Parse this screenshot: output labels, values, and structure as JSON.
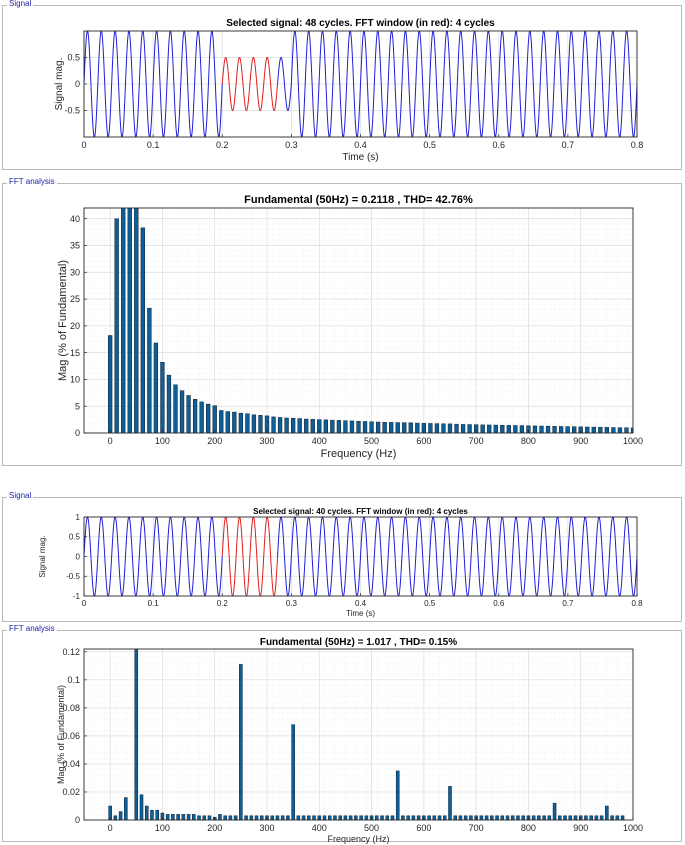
{
  "panels": [
    {
      "label": "Signal"
    },
    {
      "label": "FFT analysis"
    },
    {
      "label": "Signal"
    },
    {
      "label": "FFT analysis"
    }
  ],
  "colors": {
    "signal": "#1f1fd8",
    "window": "#e01f1f",
    "bar": "#0f5e96",
    "bar_edge": "#0a2035",
    "grid": "#dcdcdc"
  },
  "chart_data": [
    {
      "type": "line",
      "title": "Selected signal: 48 cycles. FFT window (in red): 4 cycles",
      "xlabel": "Time (s)",
      "ylabel": "Signal mag.",
      "xlim": [
        0,
        0.8
      ],
      "ylim": [
        -1,
        1
      ],
      "xticks": [
        0,
        0.1,
        0.2,
        0.3,
        0.4,
        0.5,
        0.6,
        0.7,
        0.8
      ],
      "xtick_labels": [
        "0",
        "0.1",
        "0.2",
        "0.3",
        "0.4",
        "0.5",
        "0.6",
        "0.7",
        "0.8"
      ],
      "yticks": [
        -0.5,
        0,
        0.5
      ],
      "ytick_labels": [
        "-0.5",
        "0",
        "0.5"
      ],
      "frequency_hz": 50,
      "segments": [
        {
          "t0": 0,
          "t1": 0.2,
          "amplitude": 1.0,
          "highlight": false
        },
        {
          "t0": 0.2,
          "t1": 0.28,
          "amplitude": 0.5,
          "highlight": true
        },
        {
          "t0": 0.28,
          "t1": 0.3,
          "amplitude": 0.5,
          "highlight": false
        },
        {
          "t0": 0.3,
          "t1": 0.8,
          "amplitude": 1.0,
          "highlight": false
        }
      ]
    },
    {
      "type": "bar",
      "title": "Fundamental (50Hz) = 0.2118 , THD= 42.76%",
      "xlabel": "Frequency (Hz)",
      "ylabel": "Mag (% of Fundamental)",
      "xlim": [
        -50,
        1000
      ],
      "ylim": [
        0,
        42
      ],
      "xticks": [
        0,
        100,
        200,
        300,
        400,
        500,
        600,
        700,
        800,
        900,
        1000
      ],
      "xtick_labels": [
        "0",
        "100",
        "200",
        "300",
        "400",
        "500",
        "600",
        "700",
        "800",
        "900",
        "1000"
      ],
      "yticks": [
        0,
        5,
        10,
        15,
        20,
        25,
        30,
        35,
        40
      ],
      "ytick_labels": [
        "0",
        "5",
        "10",
        "15",
        "20",
        "25",
        "30",
        "35",
        "40"
      ],
      "x_start": 0,
      "x_step": 12.5,
      "values": [
        18.2,
        40.0,
        42,
        42,
        42,
        38.3,
        23.3,
        16.8,
        13.2,
        10.8,
        9.0,
        7.9,
        7.0,
        6.3,
        5.8,
        5.4,
        5.1,
        4.2,
        4.0,
        3.9,
        3.7,
        3.6,
        3.4,
        3.3,
        3.2,
        3.0,
        2.9,
        2.8,
        2.75,
        2.7,
        2.6,
        2.55,
        2.5,
        2.45,
        2.4,
        2.35,
        2.3,
        2.25,
        2.2,
        2.15,
        2.1,
        2.05,
        2.0,
        1.98,
        1.95,
        1.92,
        1.9,
        1.85,
        1.8,
        1.78,
        1.75,
        1.72,
        1.7,
        1.65,
        1.6,
        1.58,
        1.55,
        1.52,
        1.5,
        1.48,
        1.45,
        1.42,
        1.4,
        1.38,
        1.35,
        1.32,
        1.3,
        1.28,
        1.25,
        1.22,
        1.2,
        1.18,
        1.15,
        1.12,
        1.1,
        1.08,
        1.05,
        1.02,
        1.0,
        0.98,
        0.96
      ]
    },
    {
      "type": "line",
      "title": "Selected signal: 40 cycles. FFT window (in red): 4 cycles",
      "xlabel": "Time (s)",
      "ylabel": "Signal mag.",
      "xlim": [
        0,
        0.8
      ],
      "ylim": [
        -1,
        1
      ],
      "xticks": [
        0,
        0.1,
        0.2,
        0.3,
        0.4,
        0.5,
        0.6,
        0.7,
        0.8
      ],
      "xtick_labels": [
        "0",
        "0.1",
        "0.2",
        "0.3",
        "0.4",
        "0.5",
        "0.6",
        "0.7",
        "0.8"
      ],
      "yticks": [
        -1,
        -0.5,
        0,
        0.5,
        1
      ],
      "ytick_labels": [
        "-1",
        "-0.5",
        "0",
        "0.5",
        "1"
      ],
      "frequency_hz": 50,
      "segments": [
        {
          "t0": 0,
          "t1": 0.2,
          "amplitude": 1.0,
          "highlight": false
        },
        {
          "t0": 0.2,
          "t1": 0.28,
          "amplitude": 1.0,
          "highlight": true
        },
        {
          "t0": 0.28,
          "t1": 0.8,
          "amplitude": 1.0,
          "highlight": false
        }
      ]
    },
    {
      "type": "bar",
      "title": "Fundamental (50Hz) = 1.017 , THD= 0.15%",
      "xlabel": "Frequency (Hz)",
      "ylabel": "Mag (% of Fundamental)",
      "xlim": [
        -50,
        1000
      ],
      "ylim": [
        0,
        0.122
      ],
      "xticks": [
        0,
        100,
        200,
        300,
        400,
        500,
        600,
        700,
        800,
        900,
        1000
      ],
      "xtick_labels": [
        "0",
        "100",
        "200",
        "300",
        "400",
        "500",
        "600",
        "700",
        "800",
        "900",
        "1000"
      ],
      "yticks": [
        0,
        0.02,
        0.04,
        0.06,
        0.08,
        0.1,
        0.12
      ],
      "ytick_labels": [
        "0",
        "0.02",
        "0.04",
        "0.06",
        "0.08",
        "0.1",
        "0.12"
      ],
      "x_start": 0,
      "x_step": 10,
      "values": [
        0.01,
        0.003,
        0.006,
        0.016,
        0.0,
        0.122,
        0.018,
        0.01,
        0.007,
        0.007,
        0.005,
        0.004,
        0.004,
        0.004,
        0.004,
        0.004,
        0.004,
        0.003,
        0.003,
        0.003,
        0.002,
        0.004,
        0.003,
        0.003,
        0.003,
        0.111,
        0.003,
        0.003,
        0.003,
        0.003,
        0.003,
        0.003,
        0.003,
        0.003,
        0.003,
        0.068,
        0.003,
        0.003,
        0.003,
        0.003,
        0.003,
        0.003,
        0.003,
        0.003,
        0.003,
        0.003,
        0.003,
        0.003,
        0.003,
        0.003,
        0.003,
        0.003,
        0.003,
        0.003,
        0.003,
        0.035,
        0.003,
        0.003,
        0.003,
        0.003,
        0.003,
        0.003,
        0.003,
        0.003,
        0.003,
        0.024,
        0.003,
        0.003,
        0.003,
        0.003,
        0.003,
        0.003,
        0.003,
        0.003,
        0.003,
        0.003,
        0.003,
        0.003,
        0.003,
        0.003,
        0.003,
        0.003,
        0.003,
        0.003,
        0.003,
        0.012,
        0.003,
        0.003,
        0.003,
        0.003,
        0.003,
        0.003,
        0.003,
        0.003,
        0.003,
        0.01,
        0.003,
        0.003,
        0.003
      ]
    }
  ]
}
